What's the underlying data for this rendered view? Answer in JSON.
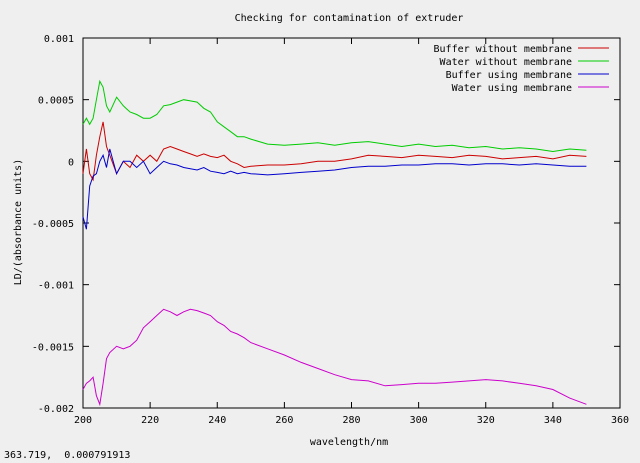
{
  "status_bar": {
    "coordinates": "363.719,  0.000791913"
  },
  "colors": {
    "frame": "#000000",
    "background": "#efefef"
  },
  "chart_data": {
    "type": "line",
    "title": "Checking for contamination of extruder",
    "xlabel": "wavelength/nm",
    "ylabel": "LD/(absorbance units)",
    "xlim": [
      200,
      360
    ],
    "ylim": [
      -0.002,
      0.001
    ],
    "grid": false,
    "legend_position": "top-right",
    "x_ticks": [
      200,
      220,
      240,
      260,
      280,
      300,
      320,
      340,
      360
    ],
    "x_tick_labels": [
      "200",
      "220",
      "240",
      "260",
      "280",
      "300",
      "320",
      "340",
      "360"
    ],
    "y_ticks": [
      0.001,
      0.0005,
      0,
      -0.0005,
      -0.001,
      -0.0015,
      -0.002
    ],
    "y_tick_labels": [
      "0.001",
      "0.0005",
      "0",
      "-0.0005",
      "-0.001",
      "-0.0015",
      "-0.002"
    ],
    "series": [
      {
        "name": "Buffer without membrane",
        "color": "#cc0000",
        "x": [
          200,
          201,
          202,
          203,
          204,
          205,
          206,
          207,
          208,
          210,
          212,
          214,
          216,
          218,
          220,
          222,
          224,
          226,
          228,
          230,
          232,
          234,
          236,
          238,
          240,
          242,
          244,
          246,
          248,
          250,
          255,
          260,
          265,
          270,
          275,
          280,
          285,
          290,
          295,
          300,
          305,
          310,
          315,
          320,
          325,
          330,
          335,
          340,
          345,
          350
        ],
        "values": [
          -0.0001,
          0.0001,
          -0.0001,
          -0.00015,
          5e-05,
          0.0002,
          0.00032,
          0.00012,
          5e-05,
          -0.0001,
          0.0,
          -5e-05,
          5e-05,
          0.0,
          5e-05,
          0.0,
          0.0001,
          0.00012,
          0.0001,
          8e-05,
          6e-05,
          4e-05,
          6e-05,
          4e-05,
          3e-05,
          5e-05,
          0.0,
          -2e-05,
          -5e-05,
          -4e-05,
          -3e-05,
          -3e-05,
          -2e-05,
          0.0,
          0.0,
          2e-05,
          5e-05,
          4e-05,
          3e-05,
          5e-05,
          4e-05,
          3e-05,
          5e-05,
          4e-05,
          2e-05,
          3e-05,
          4e-05,
          2e-05,
          5e-05,
          4e-05
        ]
      },
      {
        "name": "Water without membrane",
        "color": "#00cc00",
        "x": [
          200,
          201,
          202,
          203,
          204,
          205,
          206,
          207,
          208,
          210,
          212,
          214,
          216,
          218,
          220,
          222,
          224,
          226,
          228,
          230,
          232,
          234,
          236,
          238,
          240,
          242,
          244,
          246,
          248,
          250,
          255,
          260,
          265,
          270,
          275,
          280,
          285,
          290,
          295,
          300,
          305,
          310,
          315,
          320,
          325,
          330,
          335,
          340,
          345,
          350
        ],
        "values": [
          0.0003,
          0.00035,
          0.0003,
          0.00035,
          0.0005,
          0.00065,
          0.0006,
          0.00045,
          0.0004,
          0.00052,
          0.00045,
          0.0004,
          0.00038,
          0.00035,
          0.00035,
          0.00038,
          0.00045,
          0.00046,
          0.00048,
          0.0005,
          0.00049,
          0.00048,
          0.00043,
          0.0004,
          0.00032,
          0.00028,
          0.00024,
          0.0002,
          0.0002,
          0.00018,
          0.00014,
          0.00013,
          0.00014,
          0.00015,
          0.00013,
          0.00015,
          0.00016,
          0.00014,
          0.00012,
          0.00014,
          0.00012,
          0.00013,
          0.00011,
          0.00012,
          0.0001,
          0.00011,
          0.0001,
          8e-05,
          0.0001,
          9e-05
        ]
      },
      {
        "name": "Buffer using membrane",
        "color": "#0000cc",
        "x": [
          200,
          201,
          202,
          203,
          204,
          205,
          206,
          207,
          208,
          210,
          212,
          214,
          216,
          218,
          220,
          222,
          224,
          226,
          228,
          230,
          232,
          234,
          236,
          238,
          240,
          242,
          244,
          246,
          248,
          250,
          255,
          260,
          265,
          270,
          275,
          280,
          285,
          290,
          295,
          300,
          305,
          310,
          315,
          320,
          325,
          330,
          335,
          340,
          345,
          350
        ],
        "values": [
          -0.00045,
          -0.00055,
          -0.0002,
          -0.00012,
          -0.0001,
          0.0,
          5e-05,
          -5e-05,
          0.0001,
          -0.0001,
          0.0,
          0.0,
          -5e-05,
          0.0,
          -0.0001,
          -5e-05,
          0.0,
          -2e-05,
          -3e-05,
          -5e-05,
          -6e-05,
          -7e-05,
          -5e-05,
          -8e-05,
          -9e-05,
          -0.0001,
          -8e-05,
          -0.0001,
          -9e-05,
          -0.0001,
          -0.00011,
          -0.0001,
          -9e-05,
          -8e-05,
          -7e-05,
          -5e-05,
          -4e-05,
          -4e-05,
          -3e-05,
          -3e-05,
          -2e-05,
          -2e-05,
          -3e-05,
          -2e-05,
          -2e-05,
          -3e-05,
          -2e-05,
          -3e-05,
          -4e-05,
          -4e-05
        ]
      },
      {
        "name": "Water using membrane",
        "color": "#cc00cc",
        "x": [
          200,
          201,
          202,
          203,
          204,
          205,
          206,
          207,
          208,
          210,
          212,
          214,
          216,
          218,
          220,
          222,
          224,
          226,
          228,
          230,
          232,
          234,
          236,
          238,
          240,
          242,
          244,
          246,
          248,
          250,
          255,
          260,
          265,
          270,
          275,
          280,
          285,
          290,
          295,
          300,
          305,
          310,
          315,
          320,
          325,
          330,
          335,
          340,
          345,
          350
        ],
        "values": [
          -0.00185,
          -0.0018,
          -0.00178,
          -0.00175,
          -0.0019,
          -0.00197,
          -0.0018,
          -0.0016,
          -0.00155,
          -0.0015,
          -0.00152,
          -0.0015,
          -0.00145,
          -0.00135,
          -0.0013,
          -0.00125,
          -0.0012,
          -0.00122,
          -0.00125,
          -0.00122,
          -0.0012,
          -0.00121,
          -0.00123,
          -0.00125,
          -0.0013,
          -0.00133,
          -0.00138,
          -0.0014,
          -0.00143,
          -0.00147,
          -0.00152,
          -0.00157,
          -0.00163,
          -0.00168,
          -0.00173,
          -0.00177,
          -0.00178,
          -0.00182,
          -0.00181,
          -0.0018,
          -0.0018,
          -0.00179,
          -0.00178,
          -0.00177,
          -0.00178,
          -0.0018,
          -0.00182,
          -0.00185,
          -0.00192,
          -0.00197
        ]
      }
    ]
  }
}
